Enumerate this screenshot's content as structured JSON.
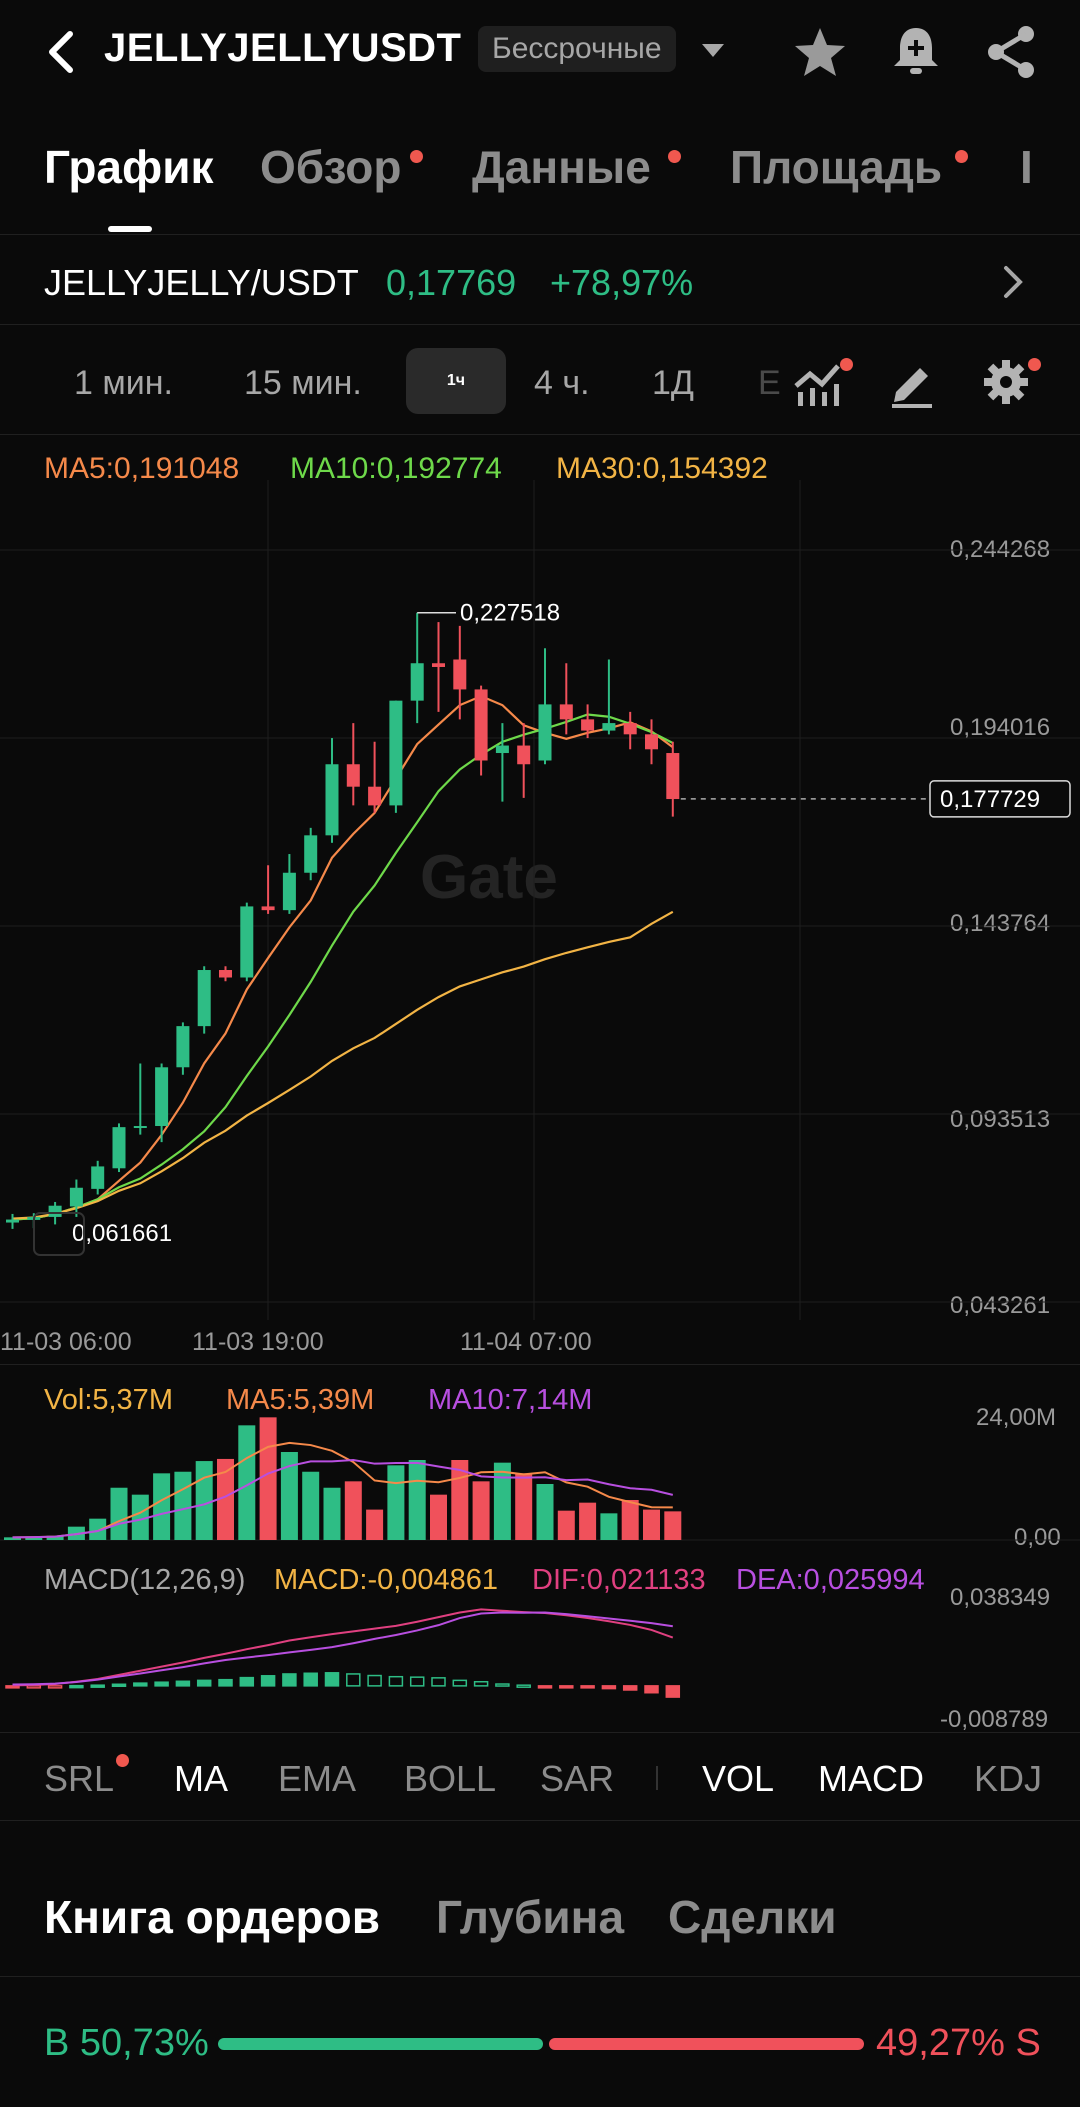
{
  "header": {
    "symbol": "JELLYJELLYUSDT",
    "contract_type": "Бессрочные",
    "icons": [
      "back-arrow-icon",
      "star-icon",
      "bell-add-icon",
      "share-icon"
    ]
  },
  "tabs": [
    {
      "label": "График",
      "active": true,
      "dot": false
    },
    {
      "label": "Обзор",
      "active": false,
      "dot": true
    },
    {
      "label": "Данные",
      "active": false,
      "dot": true
    },
    {
      "label": "Площадь",
      "active": false,
      "dot": true
    },
    {
      "label": "I",
      "active": false,
      "dot": false
    }
  ],
  "pair": {
    "name": "JELLYJELLY/USDT",
    "price": "0,17769",
    "change": "+78,97%"
  },
  "intervals": [
    "1 мин.",
    "15 мин.",
    "1ч",
    "4 ч.",
    "1Д",
    "Е"
  ],
  "interval_selected": "1ч",
  "ma_legend": {
    "ma5": "MA5:0,191048",
    "ma10": "MA10:0,192774",
    "ma30": "MA30:0,154392"
  },
  "colors": {
    "up": "#2ebd85",
    "down": "#f0515b",
    "ma5": "#f5894a",
    "ma10": "#6ed94a",
    "ma30": "#f2b445",
    "vol_ma10": "#b84fe0",
    "dif": "#e04080",
    "dea": "#b84fe0"
  },
  "price_axis": [
    "0,244268",
    "0,194016",
    "0,143764",
    "0,093513",
    "0,043261"
  ],
  "current_price_tag": "0,177729",
  "high_label": "0,227518",
  "low_label": "0,061661",
  "time_axis": [
    "11-03 06:00",
    "11-03 19:00",
    "11-04 07:00"
  ],
  "watermark": "Gate",
  "volume": {
    "legend_vol": "Vol:5,37M",
    "legend_ma5": "MA5:5,39M",
    "legend_ma10": "MA10:7,14M",
    "axis_top": "24,00M",
    "axis_bottom": "0,00"
  },
  "macd": {
    "legend_name": "MACD(12,26,9)",
    "legend_macd": "MACD:-0,004861",
    "legend_dif": "DIF:0,021133",
    "legend_dea": "DEA:0,025994",
    "axis_top": "0,038349",
    "axis_bottom": "-0,008789"
  },
  "indicator_tabs": [
    {
      "label": "SRL",
      "on": false,
      "dot": true
    },
    {
      "label": "MA",
      "on": true,
      "dot": false
    },
    {
      "label": "EMA",
      "on": false,
      "dot": false
    },
    {
      "label": "BOLL",
      "on": false,
      "dot": false
    },
    {
      "label": "SAR",
      "on": false,
      "dot": false
    },
    {
      "label": "VOL",
      "on": true,
      "dot": false
    },
    {
      "label": "MACD",
      "on": true,
      "dot": false
    },
    {
      "label": "KDJ",
      "on": false,
      "dot": false
    }
  ],
  "orderbook_tabs": [
    "Книга ордеров",
    "Глубина",
    "Сделки"
  ],
  "ratio": {
    "buy_label": "B 50,73%",
    "sell_label": "49,27% S",
    "buy_percent": 50.73
  },
  "chart_data": {
    "type": "candlestick",
    "interval": "1ч",
    "ylim": [
      0.043261,
      0.244268
    ],
    "candles": [
      {
        "o": 0.0645,
        "h": 0.0668,
        "l": 0.0628,
        "c": 0.0653
      },
      {
        "o": 0.0652,
        "h": 0.067,
        "l": 0.063,
        "c": 0.066
      },
      {
        "o": 0.066,
        "h": 0.07,
        "l": 0.064,
        "c": 0.069
      },
      {
        "o": 0.0688,
        "h": 0.076,
        "l": 0.066,
        "c": 0.0738
      },
      {
        "o": 0.0735,
        "h": 0.081,
        "l": 0.072,
        "c": 0.0795
      },
      {
        "o": 0.079,
        "h": 0.091,
        "l": 0.078,
        "c": 0.09
      },
      {
        "o": 0.0898,
        "h": 0.107,
        "l": 0.088,
        "c": 0.0903
      },
      {
        "o": 0.0903,
        "h": 0.107,
        "l": 0.086,
        "c": 0.106
      },
      {
        "o": 0.106,
        "h": 0.118,
        "l": 0.104,
        "c": 0.117
      },
      {
        "o": 0.117,
        "h": 0.133,
        "l": 0.115,
        "c": 0.132
      },
      {
        "o": 0.132,
        "h": 0.133,
        "l": 0.129,
        "c": 0.13
      },
      {
        "o": 0.13,
        "h": 0.15,
        "l": 0.129,
        "c": 0.149
      },
      {
        "o": 0.149,
        "h": 0.16,
        "l": 0.147,
        "c": 0.148
      },
      {
        "o": 0.148,
        "h": 0.163,
        "l": 0.147,
        "c": 0.158
      },
      {
        "o": 0.158,
        "h": 0.17,
        "l": 0.156,
        "c": 0.168
      },
      {
        "o": 0.168,
        "h": 0.194,
        "l": 0.166,
        "c": 0.187
      },
      {
        "o": 0.187,
        "h": 0.198,
        "l": 0.176,
        "c": 0.181
      },
      {
        "o": 0.181,
        "h": 0.193,
        "l": 0.174,
        "c": 0.176
      },
      {
        "o": 0.176,
        "h": 0.204,
        "l": 0.174,
        "c": 0.204
      },
      {
        "o": 0.204,
        "h": 0.2275,
        "l": 0.198,
        "c": 0.214
      },
      {
        "o": 0.214,
        "h": 0.225,
        "l": 0.201,
        "c": 0.213
      },
      {
        "o": 0.215,
        "h": 0.224,
        "l": 0.199,
        "c": 0.207
      },
      {
        "o": 0.207,
        "h": 0.208,
        "l": 0.184,
        "c": 0.188
      },
      {
        "o": 0.19,
        "h": 0.198,
        "l": 0.177,
        "c": 0.192
      },
      {
        "o": 0.192,
        "h": 0.198,
        "l": 0.178,
        "c": 0.187
      },
      {
        "o": 0.188,
        "h": 0.218,
        "l": 0.187,
        "c": 0.203
      },
      {
        "o": 0.203,
        "h": 0.214,
        "l": 0.195,
        "c": 0.199
      },
      {
        "o": 0.199,
        "h": 0.203,
        "l": 0.194,
        "c": 0.196
      },
      {
        "o": 0.196,
        "h": 0.215,
        "l": 0.195,
        "c": 0.198
      },
      {
        "o": 0.198,
        "h": 0.201,
        "l": 0.191,
        "c": 0.195
      },
      {
        "o": 0.195,
        "h": 0.199,
        "l": 0.187,
        "c": 0.191
      },
      {
        "o": 0.19,
        "h": 0.193,
        "l": 0.173,
        "c": 0.1777
      }
    ],
    "volume_millions": [
      0.5,
      0.6,
      0.8,
      2.5,
      4,
      9.8,
      8.5,
      12.5,
      12.8,
      14.8,
      15.2,
      21.5,
      23,
      16.5,
      12.8,
      9.8,
      11,
      5.7,
      14,
      15,
      8.5,
      15,
      11,
      14.5,
      12.5,
      10.5,
      5.5,
      7,
      5,
      7.5,
      5.7,
      5.37
    ],
    "macd_hist": [
      -0.0004,
      -0.0003,
      -0.0002,
      0.0001,
      0.0003,
      0.0007,
      0.0012,
      0.0016,
      0.002,
      0.0024,
      0.0027,
      0.0036,
      0.0044,
      0.0052,
      0.0055,
      0.0057,
      0.0052,
      0.0045,
      0.004,
      0.0038,
      0.0035,
      0.0024,
      0.0018,
      0.0008,
      0.0003,
      -0.0002,
      -0.0005,
      -0.0008,
      -0.0012,
      -0.0018,
      -0.003,
      -0.0049
    ],
    "dif": [
      0.0002,
      0.0004,
      0.0008,
      0.0018,
      0.003,
      0.0048,
      0.0066,
      0.0084,
      0.0102,
      0.0122,
      0.014,
      0.016,
      0.0178,
      0.0198,
      0.0212,
      0.0226,
      0.0238,
      0.025,
      0.0262,
      0.028,
      0.03,
      0.032,
      0.0334,
      0.0328,
      0.0322,
      0.0318,
      0.0308,
      0.0296,
      0.0282,
      0.0266,
      0.0244,
      0.0211
    ],
    "dea": [
      0.0006,
      0.0007,
      0.001,
      0.0017,
      0.0027,
      0.0041,
      0.0054,
      0.0068,
      0.0082,
      0.0098,
      0.0113,
      0.0124,
      0.0134,
      0.0146,
      0.0157,
      0.0169,
      0.0186,
      0.0205,
      0.0222,
      0.0242,
      0.0265,
      0.0296,
      0.0316,
      0.032,
      0.0319,
      0.032,
      0.0313,
      0.0304,
      0.0294,
      0.0284,
      0.0274,
      0.026
    ],
    "macd_ylim": [
      -0.008789,
      0.038349
    ],
    "volume_ylim": [
      0,
      24
    ]
  }
}
